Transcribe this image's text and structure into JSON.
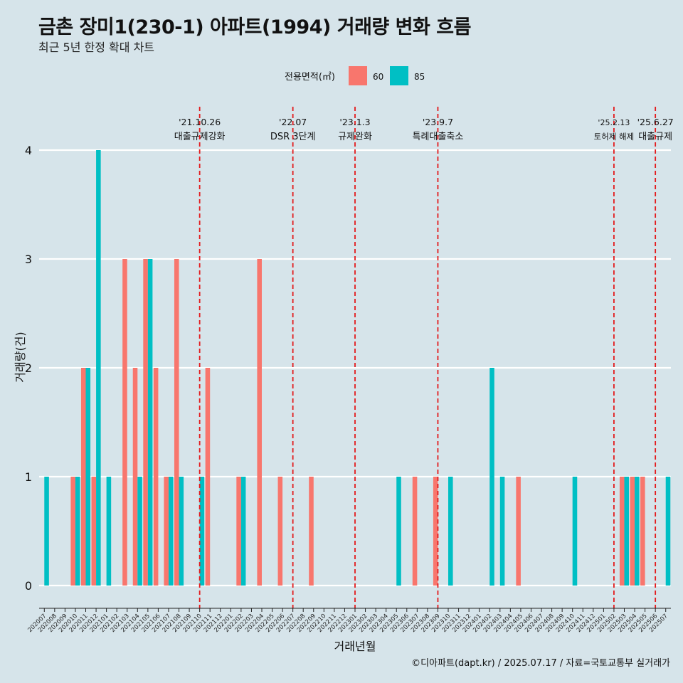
{
  "chart_data": {
    "type": "bar",
    "title": "금촌 장미1(230-1) 아파트(1994) 거래량 변화 흐름",
    "subtitle": "최근 5년 한정 확대 차트",
    "xlabel": "거래년월",
    "ylabel": "거래량(건)",
    "ylim": [
      0,
      4
    ],
    "yticks": [
      0,
      1,
      2,
      3,
      4
    ],
    "grid": true,
    "legend": {
      "title": "전용면적(㎡)",
      "position": "top",
      "entries": [
        {
          "name": "60",
          "color": "#F8766D"
        },
        {
          "name": "85",
          "color": "#00BFC4"
        }
      ]
    },
    "categories": [
      "202007",
      "202008",
      "202009",
      "202010",
      "202011",
      "202012",
      "202101",
      "202102",
      "202103",
      "202104",
      "202105",
      "202106",
      "202107",
      "202108",
      "202109",
      "202110",
      "202111",
      "202112",
      "202201",
      "202202",
      "202203",
      "202204",
      "202205",
      "202206",
      "202207",
      "202208",
      "202209",
      "202210",
      "202211",
      "202212",
      "202301",
      "202302",
      "202303",
      "202304",
      "202305",
      "202306",
      "202307",
      "202308",
      "202309",
      "202310",
      "202311",
      "202312",
      "202401",
      "202402",
      "202403",
      "202404",
      "202405",
      "202406",
      "202407",
      "202408",
      "202409",
      "202410",
      "202411",
      "202412",
      "202501",
      "202502",
      "202503",
      "202504",
      "202505",
      "202506",
      "202507"
    ],
    "series": [
      {
        "name": "60",
        "color": "#F8766D",
        "values": [
          0,
          0,
          0,
          1,
          2,
          1,
          0,
          0,
          3,
          2,
          3,
          2,
          1,
          3,
          0,
          0,
          2,
          0,
          0,
          1,
          0,
          3,
          0,
          1,
          0,
          0,
          1,
          0,
          0,
          0,
          0,
          0,
          0,
          0,
          0,
          0,
          1,
          0,
          1,
          0,
          0,
          0,
          0,
          0,
          0,
          0,
          1,
          0,
          0,
          0,
          0,
          0,
          0,
          0,
          0,
          0,
          1,
          1,
          1,
          0,
          0
        ]
      },
      {
        "name": "85",
        "color": "#00BFC4",
        "values": [
          1,
          0,
          0,
          1,
          2,
          4,
          1,
          0,
          0,
          1,
          3,
          0,
          1,
          1,
          0,
          1,
          0,
          0,
          0,
          1,
          0,
          0,
          0,
          0,
          0,
          0,
          0,
          0,
          0,
          0,
          0,
          0,
          0,
          0,
          1,
          0,
          0,
          0,
          0,
          1,
          0,
          0,
          0,
          2,
          1,
          0,
          0,
          0,
          0,
          0,
          0,
          1,
          0,
          0,
          0,
          0,
          1,
          1,
          0,
          0,
          1
        ]
      }
    ],
    "annotations": [
      {
        "category": "202110",
        "date": "'21.10.26",
        "label": "대출규제강화"
      },
      {
        "category": "202207",
        "date": "'22.07",
        "label": "DSR 3단계"
      },
      {
        "category": "202301",
        "date": "'23.1.3",
        "label": "규제완화"
      },
      {
        "category": "202309",
        "date": "'23.9.7",
        "label": "특례대출축소"
      },
      {
        "category": "202502",
        "date": "'25.2.13",
        "label": "토허제 해제"
      },
      {
        "category": "202506",
        "date": "'25.6.27",
        "label": "대출규제"
      }
    ],
    "annotation_color": "#e31a1c"
  },
  "caption": "©디아파트(dapt.kr) / 2025.07.17 / 자료=국토교통부 실거래가"
}
